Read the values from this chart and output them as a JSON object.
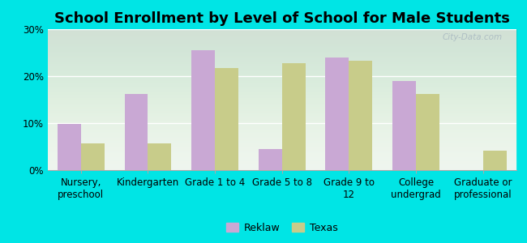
{
  "title": "School Enrollment by Level of School for Male Students",
  "categories": [
    "Nursery,\npreschool",
    "Kindergarten",
    "Grade 1 to 4",
    "Grade 5 to 8",
    "Grade 9 to\n12",
    "College\nundergrad",
    "Graduate or\nprofessional"
  ],
  "reklaw": [
    9.8,
    16.2,
    25.5,
    4.5,
    24.0,
    19.0,
    0.0
  ],
  "texas": [
    5.7,
    5.7,
    21.8,
    22.8,
    23.3,
    16.2,
    4.2
  ],
  "reklaw_color": "#c9a8d4",
  "texas_color": "#c8cc8a",
  "background_color": "#00e5e5",
  "ylim": [
    0,
    30
  ],
  "yticks": [
    0,
    10,
    20,
    30
  ],
  "ytick_labels": [
    "0%",
    "10%",
    "20%",
    "30%"
  ],
  "bar_width": 0.35,
  "legend_labels": [
    "Reklaw",
    "Texas"
  ],
  "title_fontsize": 13,
  "tick_fontsize": 8.5
}
